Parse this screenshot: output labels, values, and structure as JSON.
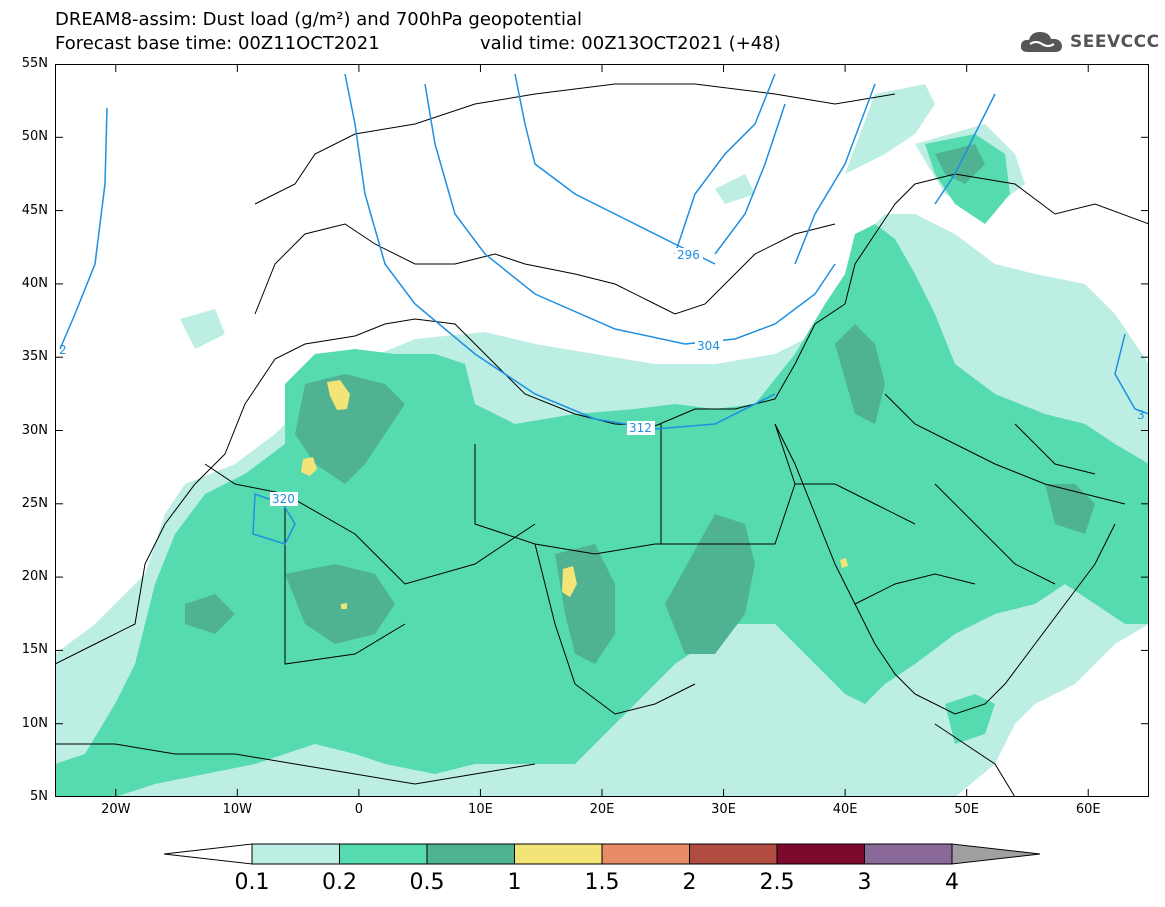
{
  "header": {
    "title_line1": "DREAM8-assim: Dust load (g/m²) and 700hPa geopotential",
    "title_line2_left": "Forecast base time: 00Z11OCT2021",
    "title_line2_right": "valid time: 00Z13OCT2021 (+48)",
    "logo_text": "SEEVCCC"
  },
  "map": {
    "lat_labels": [
      "55N",
      "50N",
      "45N",
      "40N",
      "35N",
      "30N",
      "25N",
      "20N",
      "15N",
      "10N",
      "5N"
    ],
    "lon_labels": [
      "20W",
      "10W",
      "0",
      "10E",
      "20E",
      "30E",
      "40E",
      "50E",
      "60E"
    ],
    "lat_values": [
      55,
      50,
      45,
      40,
      35,
      30,
      25,
      20,
      15,
      10,
      5
    ],
    "lon_values": [
      -20,
      -10,
      0,
      10,
      20,
      30,
      40,
      50,
      60
    ],
    "lon_range": [
      -25,
      65
    ],
    "lat_range": [
      5,
      55
    ],
    "contour_labels": [
      "296",
      "304",
      "312",
      "320",
      "2",
      "3"
    ]
  },
  "legend": {
    "labels": [
      "0.1",
      "0.2",
      "0.5",
      "1",
      "1.5",
      "2",
      "2.5",
      "3",
      "4"
    ],
    "colors": [
      "#ffffff",
      "#bdeee4",
      "#56dbb0",
      "#4fb393",
      "#f2e477",
      "#e88c67",
      "#b04d40",
      "#7d0a2d",
      "#8a6898",
      "#a0a0a0"
    ]
  }
}
